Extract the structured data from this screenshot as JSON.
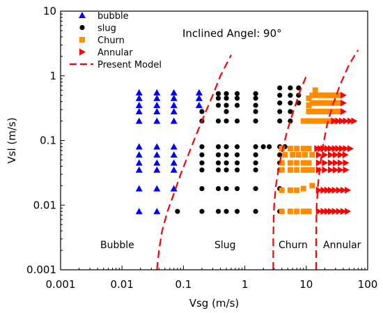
{
  "chart_data": {
    "type": "scatter",
    "title": "",
    "annotation": "Inclined Angel: 90°",
    "xlabel": "Vsg (m/s)",
    "ylabel": "Vsl (m/s)",
    "xscale": "log",
    "yscale": "log",
    "xlim": [
      0.001,
      100
    ],
    "ylim": [
      0.001,
      10
    ],
    "x_ticks": [
      "0.001",
      "0.01",
      "0.1",
      "1",
      "10",
      "100"
    ],
    "y_ticks": [
      "0.001",
      "0.01",
      "0.1",
      "1",
      "10"
    ],
    "grid": false,
    "legend_position": "top-left",
    "legend": [
      {
        "label": "bubble",
        "marker": "triangle-up",
        "color": "#0000ff"
      },
      {
        "label": "slug",
        "marker": "circle",
        "color": "#000000"
      },
      {
        "label": "Churn",
        "marker": "square",
        "color": "#ff8c00"
      },
      {
        "label": "Annular",
        "marker": "triangle-right",
        "color": "#ff0000"
      },
      {
        "label": "Present Model",
        "marker": "dashed-line",
        "color": "#ff0000"
      }
    ],
    "region_labels": [
      "Bubble",
      "Slug",
      "Churn",
      "Annular"
    ],
    "series": [
      {
        "name": "bubble",
        "marker": "triangle-up",
        "color": "#0000ff",
        "points": [
          [
            0.019,
            0.55
          ],
          [
            0.019,
            0.45
          ],
          [
            0.019,
            0.35
          ],
          [
            0.019,
            0.28
          ],
          [
            0.019,
            0.2
          ],
          [
            0.019,
            0.08
          ],
          [
            0.019,
            0.06
          ],
          [
            0.019,
            0.045
          ],
          [
            0.019,
            0.035
          ],
          [
            0.019,
            0.018
          ],
          [
            0.019,
            0.008
          ],
          [
            0.037,
            0.55
          ],
          [
            0.037,
            0.45
          ],
          [
            0.037,
            0.35
          ],
          [
            0.037,
            0.28
          ],
          [
            0.037,
            0.2
          ],
          [
            0.037,
            0.08
          ],
          [
            0.037,
            0.06
          ],
          [
            0.037,
            0.045
          ],
          [
            0.037,
            0.035
          ],
          [
            0.037,
            0.018
          ],
          [
            0.037,
            0.008
          ],
          [
            0.07,
            0.55
          ],
          [
            0.07,
            0.45
          ],
          [
            0.07,
            0.35
          ],
          [
            0.07,
            0.28
          ],
          [
            0.07,
            0.2
          ],
          [
            0.07,
            0.08
          ],
          [
            0.07,
            0.06
          ],
          [
            0.07,
            0.045
          ],
          [
            0.07,
            0.035
          ],
          [
            0.07,
            0.018
          ],
          [
            0.18,
            0.55
          ],
          [
            0.18,
            0.45
          ],
          [
            0.18,
            0.35
          ]
        ]
      },
      {
        "name": "slug",
        "marker": "circle",
        "color": "#000000",
        "points": [
          [
            0.08,
            0.008
          ],
          [
            0.2,
            0.008
          ],
          [
            0.2,
            0.018
          ],
          [
            0.2,
            0.035
          ],
          [
            0.2,
            0.045
          ],
          [
            0.2,
            0.06
          ],
          [
            0.2,
            0.08
          ],
          [
            0.2,
            0.2
          ],
          [
            0.2,
            0.28
          ],
          [
            0.37,
            0.53
          ],
          [
            0.37,
            0.45
          ],
          [
            0.37,
            0.35
          ],
          [
            0.37,
            0.2
          ],
          [
            0.37,
            0.08
          ],
          [
            0.37,
            0.06
          ],
          [
            0.37,
            0.045
          ],
          [
            0.37,
            0.035
          ],
          [
            0.37,
            0.018
          ],
          [
            0.37,
            0.008
          ],
          [
            0.5,
            0.53
          ],
          [
            0.5,
            0.45
          ],
          [
            0.5,
            0.35
          ],
          [
            0.5,
            0.28
          ],
          [
            0.5,
            0.2
          ],
          [
            0.5,
            0.08
          ],
          [
            0.5,
            0.06
          ],
          [
            0.5,
            0.045
          ],
          [
            0.5,
            0.035
          ],
          [
            0.5,
            0.018
          ],
          [
            0.5,
            0.008
          ],
          [
            0.75,
            0.53
          ],
          [
            0.75,
            0.45
          ],
          [
            0.75,
            0.35
          ],
          [
            0.75,
            0.2
          ],
          [
            0.75,
            0.08
          ],
          [
            0.75,
            0.06
          ],
          [
            0.75,
            0.045
          ],
          [
            0.75,
            0.035
          ],
          [
            0.75,
            0.018
          ],
          [
            0.75,
            0.008
          ],
          [
            1.5,
            0.53
          ],
          [
            1.5,
            0.45
          ],
          [
            1.5,
            0.35
          ],
          [
            1.5,
            0.28
          ],
          [
            1.5,
            0.2
          ],
          [
            1.5,
            0.08
          ],
          [
            1.5,
            0.06
          ],
          [
            1.5,
            0.045
          ],
          [
            1.5,
            0.035
          ],
          [
            1.5,
            0.018
          ],
          [
            1.5,
            0.008
          ],
          [
            2.0,
            0.08
          ],
          [
            2.5,
            0.08
          ],
          [
            3.7,
            0.65
          ],
          [
            3.7,
            0.5
          ],
          [
            3.7,
            0.38
          ],
          [
            3.7,
            0.28
          ],
          [
            3.7,
            0.2
          ],
          [
            3.7,
            0.08
          ],
          [
            3.7,
            0.06
          ],
          [
            3.7,
            0.045
          ],
          [
            3.7,
            0.035
          ],
          [
            3.7,
            0.018
          ],
          [
            3.7,
            0.008
          ],
          [
            4.5,
            0.08
          ],
          [
            5.5,
            0.65
          ],
          [
            5.5,
            0.5
          ],
          [
            5.5,
            0.38
          ],
          [
            5.5,
            0.28
          ],
          [
            5.5,
            0.2
          ],
          [
            7.5,
            0.65
          ],
          [
            7.5,
            0.5
          ],
          [
            7.5,
            0.38
          ]
        ]
      },
      {
        "name": "Churn",
        "marker": "square",
        "color": "#ff8c00",
        "points": [
          [
            4.0,
            0.008
          ],
          [
            4.0,
            0.017
          ],
          [
            4.0,
            0.035
          ],
          [
            4.0,
            0.045
          ],
          [
            4.0,
            0.075
          ],
          [
            4.5,
            0.06
          ],
          [
            5.5,
            0.008
          ],
          [
            5.5,
            0.017
          ],
          [
            5.5,
            0.035
          ],
          [
            5.5,
            0.045
          ],
          [
            5.5,
            0.075
          ],
          [
            6.0,
            0.06
          ],
          [
            7.0,
            0.008
          ],
          [
            7.0,
            0.017
          ],
          [
            7.0,
            0.035
          ],
          [
            7.0,
            0.045
          ],
          [
            7.0,
            0.075
          ],
          [
            7.5,
            0.06
          ],
          [
            9.0,
            0.008
          ],
          [
            9.0,
            0.018
          ],
          [
            9.0,
            0.035
          ],
          [
            9.0,
            0.045
          ],
          [
            9.0,
            0.075
          ],
          [
            9.5,
            0.06
          ],
          [
            9.0,
            0.2
          ],
          [
            11,
            0.008
          ],
          [
            11,
            0.035
          ],
          [
            11,
            0.045
          ],
          [
            11,
            0.075
          ],
          [
            11,
            0.2
          ],
          [
            11,
            0.28
          ],
          [
            11,
            0.35
          ],
          [
            11,
            0.45
          ],
          [
            12.5,
            0.02
          ],
          [
            12.5,
            0.06
          ],
          [
            12.5,
            0.035
          ],
          [
            12.5,
            0.2
          ],
          [
            12.5,
            0.28
          ],
          [
            12.5,
            0.38
          ],
          [
            12.5,
            0.5
          ],
          [
            14,
            0.2
          ],
          [
            14,
            0.28
          ],
          [
            14,
            0.38
          ],
          [
            14,
            0.5
          ],
          [
            14,
            0.6
          ],
          [
            16,
            0.2
          ],
          [
            16,
            0.28
          ],
          [
            16,
            0.38
          ],
          [
            16,
            0.5
          ],
          [
            18,
            0.2
          ],
          [
            18,
            0.28
          ],
          [
            18,
            0.38
          ],
          [
            18,
            0.5
          ],
          [
            21,
            0.2
          ],
          [
            21,
            0.28
          ],
          [
            21,
            0.38
          ],
          [
            21,
            0.5
          ],
          [
            24,
            0.2
          ],
          [
            24,
            0.28
          ],
          [
            24,
            0.38
          ],
          [
            24,
            0.5
          ],
          [
            28,
            0.2
          ],
          [
            28,
            0.28
          ],
          [
            28,
            0.38
          ],
          [
            28,
            0.5
          ],
          [
            33,
            0.28
          ],
          [
            33,
            0.38
          ],
          [
            33,
            0.5
          ]
        ]
      },
      {
        "name": "Annular",
        "marker": "triangle-right",
        "color": "#ff0000",
        "points": [
          [
            15,
            0.075
          ],
          [
            17,
            0.075
          ],
          [
            19,
            0.075
          ],
          [
            22,
            0.075
          ],
          [
            25,
            0.075
          ],
          [
            29,
            0.075
          ],
          [
            33,
            0.075
          ],
          [
            38,
            0.075
          ],
          [
            44,
            0.075
          ],
          [
            52,
            0.075
          ],
          [
            16,
            0.06
          ],
          [
            20,
            0.06
          ],
          [
            25,
            0.06
          ],
          [
            30,
            0.06
          ],
          [
            36,
            0.06
          ],
          [
            43,
            0.06
          ],
          [
            16,
            0.045
          ],
          [
            20,
            0.045
          ],
          [
            25,
            0.045
          ],
          [
            30,
            0.045
          ],
          [
            36,
            0.045
          ],
          [
            44,
            0.045
          ],
          [
            16,
            0.035
          ],
          [
            20,
            0.035
          ],
          [
            25,
            0.035
          ],
          [
            30,
            0.035
          ],
          [
            36,
            0.035
          ],
          [
            44,
            0.035
          ],
          [
            16,
            0.017
          ],
          [
            19,
            0.017
          ],
          [
            22,
            0.017
          ],
          [
            25,
            0.017
          ],
          [
            29,
            0.017
          ],
          [
            34,
            0.017
          ],
          [
            40,
            0.017
          ],
          [
            47,
            0.017
          ],
          [
            16,
            0.008
          ],
          [
            19,
            0.008
          ],
          [
            22,
            0.008
          ],
          [
            25,
            0.008
          ],
          [
            29,
            0.008
          ],
          [
            34,
            0.008
          ],
          [
            40,
            0.008
          ],
          [
            47,
            0.008
          ],
          [
            28,
            0.2
          ],
          [
            33,
            0.2
          ],
          [
            38,
            0.2
          ],
          [
            44,
            0.2
          ],
          [
            52,
            0.2
          ],
          [
            60,
            0.2
          ],
          [
            40,
            0.28
          ],
          [
            40,
            0.38
          ],
          [
            40,
            0.5
          ]
        ]
      }
    ],
    "model_curves": [
      {
        "name": "Present Model",
        "points": [
          [
            0.037,
            0.001
          ],
          [
            0.04,
            0.002
          ],
          [
            0.045,
            0.004
          ],
          [
            0.055,
            0.008
          ],
          [
            0.07,
            0.015
          ],
          [
            0.09,
            0.03
          ],
          [
            0.12,
            0.06
          ],
          [
            0.16,
            0.12
          ],
          [
            0.22,
            0.25
          ],
          [
            0.3,
            0.5
          ],
          [
            0.4,
            1.0
          ],
          [
            0.6,
            2.1
          ]
        ]
      },
      {
        "name": "Present Model",
        "points": [
          [
            2.9,
            0.001
          ],
          [
            2.9,
            0.003
          ],
          [
            2.95,
            0.006
          ],
          [
            3.0,
            0.01
          ],
          [
            3.2,
            0.02
          ],
          [
            3.6,
            0.04
          ],
          [
            4.2,
            0.08
          ],
          [
            5.0,
            0.15
          ],
          [
            6.3,
            0.3
          ],
          [
            8.0,
            0.6
          ],
          [
            10.5,
            1.1
          ]
        ]
      },
      {
        "name": "Present Model",
        "points": [
          [
            14.5,
            0.001
          ],
          [
            14.5,
            0.003
          ],
          [
            14.6,
            0.006
          ],
          [
            14.8,
            0.01
          ],
          [
            15.5,
            0.02
          ],
          [
            17,
            0.045
          ],
          [
            19,
            0.09
          ],
          [
            22,
            0.18
          ],
          [
            27,
            0.35
          ],
          [
            35,
            0.7
          ],
          [
            50,
            1.5
          ],
          [
            70,
            2.5
          ]
        ]
      }
    ]
  }
}
